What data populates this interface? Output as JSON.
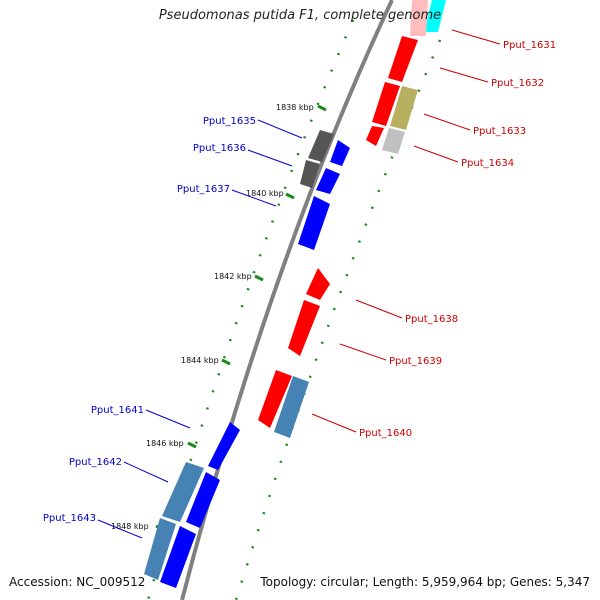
{
  "title": "Pseudomonas putida F1, complete genome",
  "accession": "Accession: NC_009512",
  "summary": "Topology: circular; Length: 5,959,964 bp; Genes: 5,347",
  "colors": {
    "backbone": "#808080",
    "tick": "#1a8a1a",
    "forward_gene": "#0000ff",
    "reverse_gene": "#ff0000",
    "steel_gene": "#4682b4",
    "gray_gene": "#555555",
    "olive_gene": "#b8b060",
    "cyan_gene": "#00ffff",
    "forward_label": "#0000cc",
    "reverse_label": "#cc0000"
  },
  "kbp_labels": [
    "1838 kbp",
    "1840 kbp",
    "1842 kbp",
    "1844 kbp",
    "1846 kbp",
    "1848 kbp"
  ],
  "gene_labels": {
    "forward": [
      "Pput_1635",
      "Pput_1636",
      "Pput_1637",
      "Pput_1641",
      "Pput_1642",
      "Pput_1643"
    ],
    "reverse": [
      "Pput_1631",
      "Pput_1632",
      "Pput_1633",
      "Pput_1634",
      "Pput_1638",
      "Pput_1639",
      "Pput_1640"
    ]
  }
}
